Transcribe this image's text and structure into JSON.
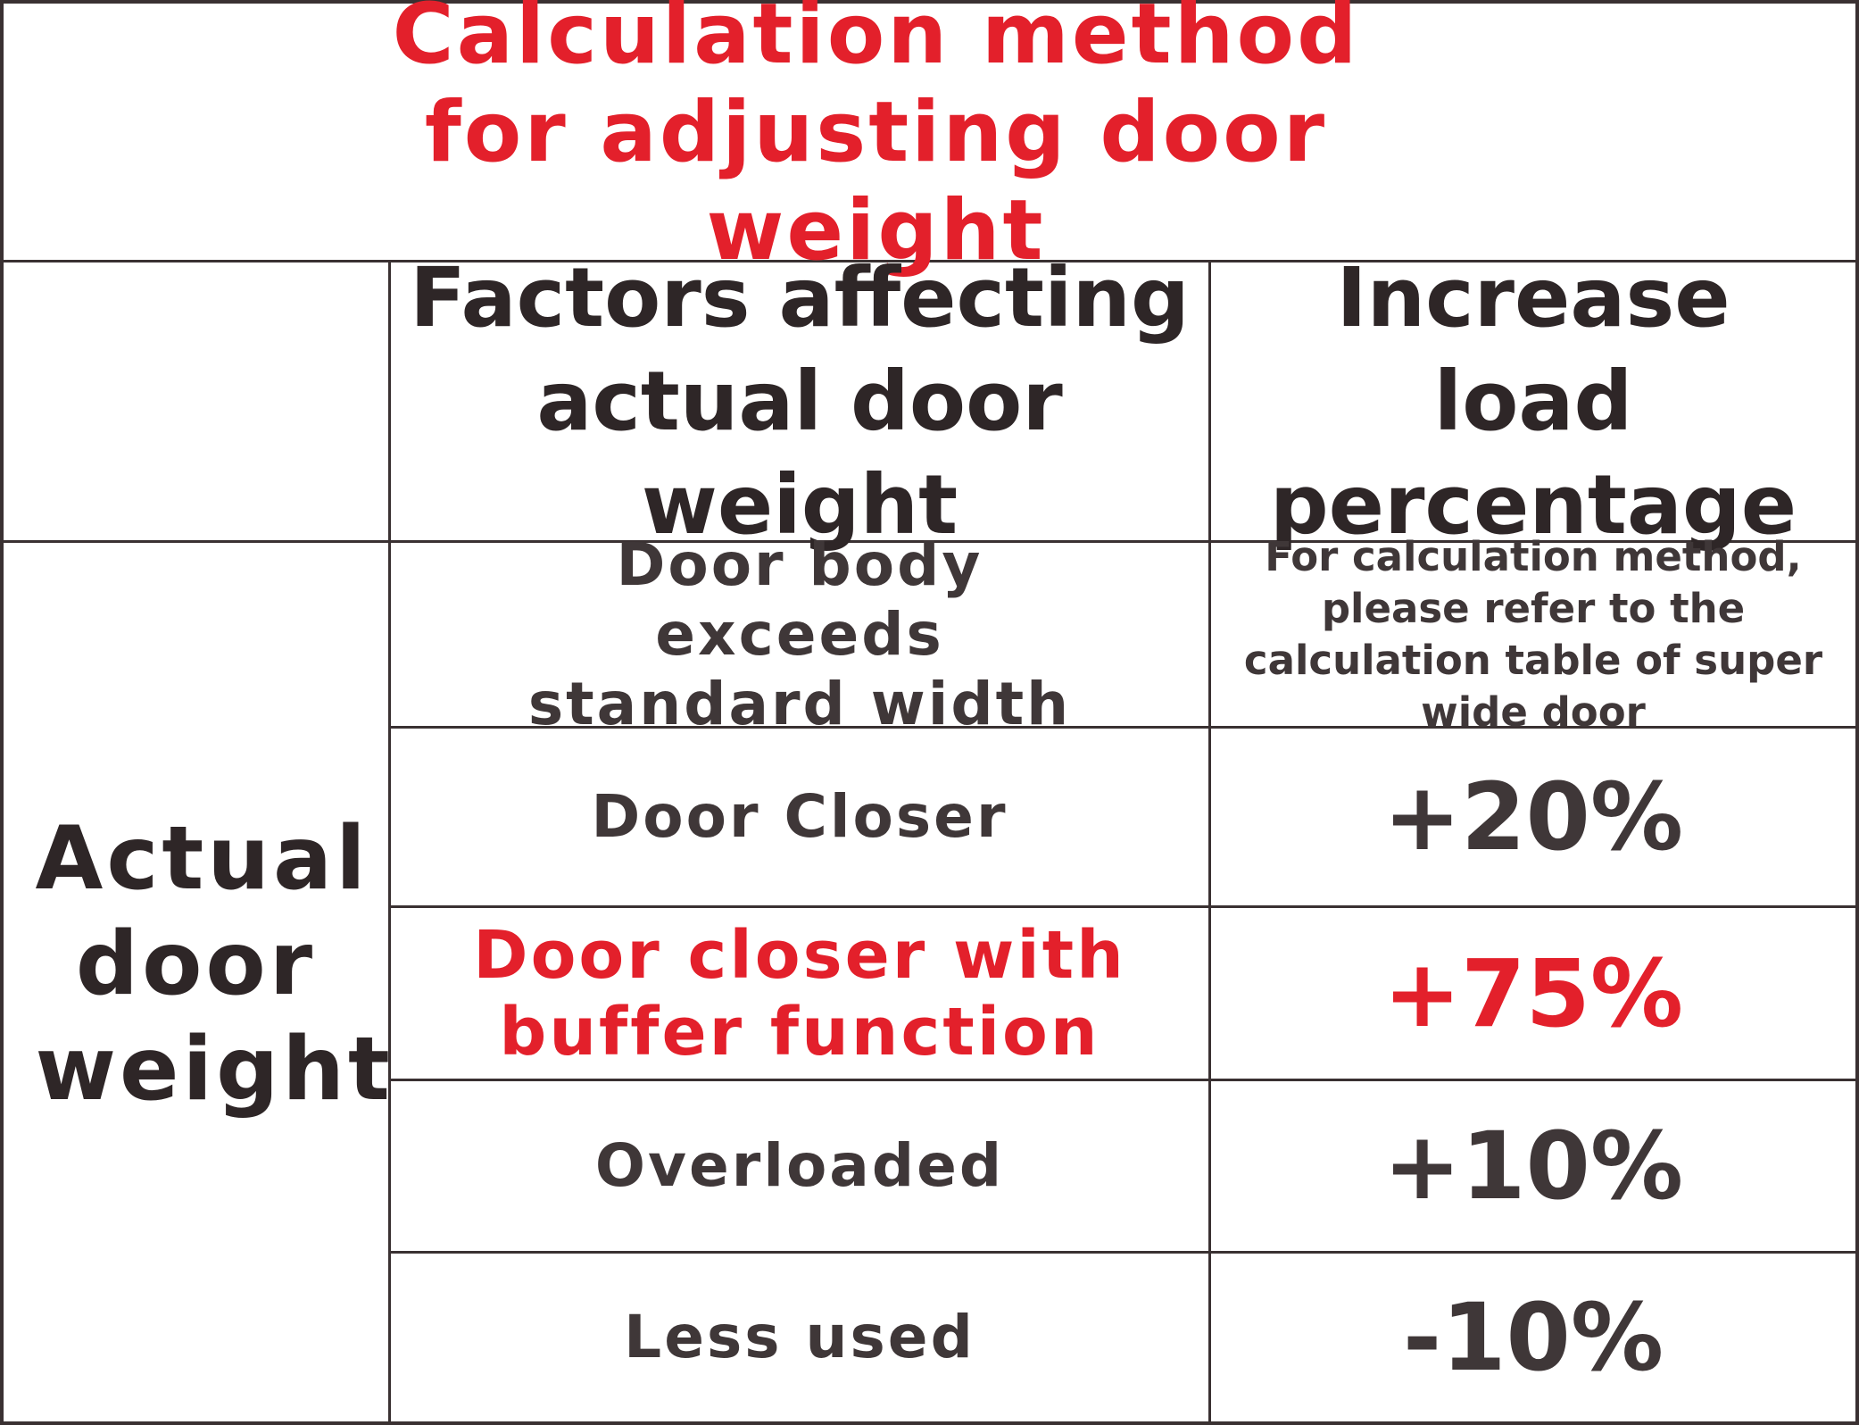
{
  "title": "Calculation method for adjusting door weight",
  "headers": {
    "factor": "Factors affecting actual door weight",
    "increase": "Increase load percentage"
  },
  "side_label": "Actual door weight",
  "rows": [
    {
      "factor": "Door body exceeds standard width",
      "increase": "For calculation method, please refer to the calculation table of super wide door"
    },
    {
      "factor": "Door Closer",
      "increase": "+20%"
    },
    {
      "factor": "Door closer with buffer function",
      "increase": "+75%"
    },
    {
      "factor": "Overloaded",
      "increase": "+10%"
    },
    {
      "factor": "Less used",
      "increase": "-10%"
    }
  ],
  "colors": {
    "highlight": "#e3202b",
    "text": "#3a3132",
    "border": "#3a3132"
  }
}
